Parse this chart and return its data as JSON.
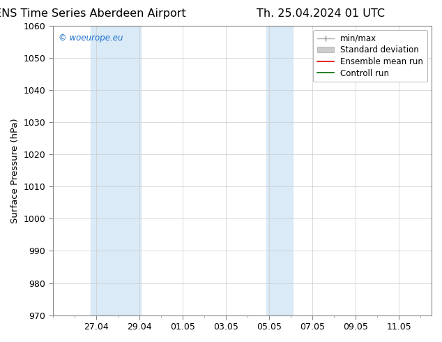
{
  "title_left": "ENS Time Series Aberdeen Airport",
  "title_right": "Th. 25.04.2024 01 UTC",
  "ylabel": "Surface Pressure (hPa)",
  "ylim": [
    970,
    1060
  ],
  "yticks": [
    970,
    980,
    990,
    1000,
    1010,
    1020,
    1030,
    1040,
    1050,
    1060
  ],
  "background_color": "#ffffff",
  "plot_bg_color": "#ffffff",
  "watermark_text": "© woeurope.eu",
  "watermark_color": "#1a6fcc",
  "x_tick_labels": [
    "27.04",
    "29.04",
    "01.05",
    "03.05",
    "05.05",
    "07.05",
    "09.05",
    "11.05"
  ],
  "x_tick_positions": [
    2,
    4,
    6,
    8,
    10,
    12,
    14,
    16
  ],
  "xlim": [
    0,
    17.5
  ],
  "shade1_xmin": 1.75,
  "shade1_xmax": 4.05,
  "shade2_xmin": 9.85,
  "shade2_xmax": 11.1,
  "shade_color": "#daeaf7",
  "grid_color": "#cccccc",
  "title_fontsize": 11.5,
  "axis_label_fontsize": 9.5,
  "tick_fontsize": 9,
  "legend_fontsize": 8.5
}
